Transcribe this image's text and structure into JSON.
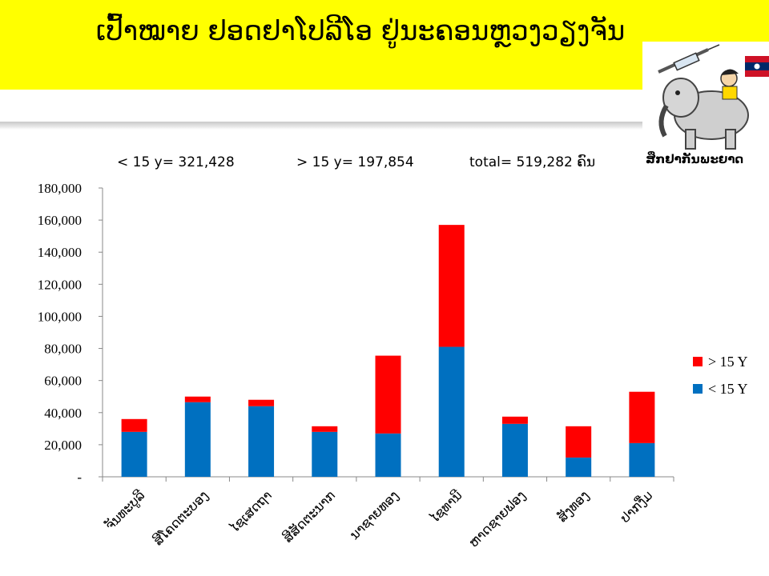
{
  "slide": {
    "title": "ເປົ້າໝາຍ ຢອດຢາໂປລີໂອ  ຢູ່ນະຄອນຫຼວງວຽງຈັນ",
    "logo_text": "ສຶກຢາກັນພະຍາດ"
  },
  "summary": {
    "under15": "< 15 y= 321,428",
    "over15": "> 15 y= 197,854",
    "total": "total= 519,282 ຄົນ"
  },
  "colors": {
    "under15": "#0070c0",
    "over15": "#ff0000",
    "banner": "#ffff00"
  },
  "chart_data": {
    "type": "bar",
    "stacked": true,
    "categories": [
      "ຈັນທະບູລີ",
      "ສີໂຄດຕະບອງ",
      "ໄຊເສດຖາ",
      "ສີສັດຕະນາກ",
      "ນາຊາຍທອງ",
      "ໄຊທານີ",
      "ຫາດຊາຍຟອງ",
      "ສັງທອງ",
      "ປາກງື່ມ"
    ],
    "series": [
      {
        "name": "< 15 Y",
        "values": [
          28000,
          46500,
          44000,
          28000,
          27000,
          81000,
          33000,
          12000,
          21000
        ]
      },
      {
        "name": "> 15 Y",
        "values": [
          8000,
          3500,
          4000,
          3500,
          48500,
          76000,
          4500,
          19500,
          32000
        ]
      }
    ],
    "ylim": [
      0,
      180000
    ],
    "yticks": [
      0,
      20000,
      40000,
      60000,
      80000,
      100000,
      120000,
      140000,
      160000,
      180000
    ],
    "ytick_labels": [
      "-",
      "20,000",
      "40,000",
      "60,000",
      "80,000",
      "100,000",
      "120,000",
      "140,000",
      "160,000",
      "180,000"
    ],
    "legend": {
      "position": "right",
      "order": [
        "> 15 Y",
        "< 15 Y"
      ]
    },
    "grid": false
  }
}
